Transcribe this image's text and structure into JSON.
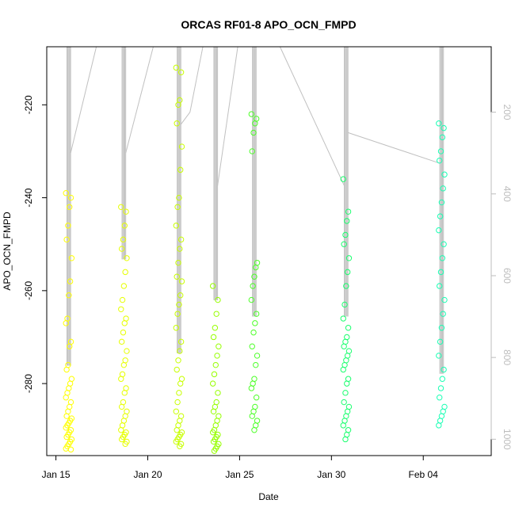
{
  "chart_data": {
    "type": "scatter",
    "title": "ORCAS RF01-8 APO_OCN_FMPD",
    "xlabel": "Date",
    "ylabel": "APO_OCN_FMPD",
    "x_tick_labels": [
      "Jan 15",
      "Jan 20",
      "Jan 25",
      "Jan 30",
      "Feb 04"
    ],
    "x_tick_dates": [
      "2016-01-15",
      "2016-01-20",
      "2016-01-25",
      "2016-01-30",
      "2016-02-04"
    ],
    "xlim": [
      "2016-01-14.5",
      "2016-02-07.7"
    ],
    "ylim": [
      -295.5,
      -207.5
    ],
    "y_ticks": [
      -220,
      -240,
      -260,
      -280
    ],
    "y2_label": "",
    "y2_ticks": [
      200,
      400,
      600,
      800,
      1000
    ],
    "y2_lim": [
      1040,
      40
    ],
    "y2_color": "#bdbdbd",
    "point_style": "open circle",
    "series": [
      {
        "date": "2016-01-15.7",
        "color": "#ffff00",
        "values": [
          -239,
          -240,
          -242,
          -246,
          -249,
          -253,
          -258,
          -261,
          -266,
          -267,
          -271,
          -272,
          -276,
          -277,
          -279,
          -280,
          -281,
          -282,
          -283,
          -284,
          -285,
          -286,
          -287,
          -287.5,
          -288,
          -288.5,
          -289,
          -289.5,
          -290,
          -290.5,
          -291,
          -291.5,
          -292,
          -292.5,
          -293,
          -293.5,
          -294,
          -294.2
        ]
      },
      {
        "date": "2016-01-18.7",
        "color": "#e6ff00",
        "values": [
          -242,
          -243,
          -246,
          -249,
          -251,
          -253,
          -256,
          -259,
          -262,
          -264,
          -266,
          -267,
          -269,
          -271,
          -273,
          -275,
          -276,
          -278,
          -279,
          -281,
          -282,
          -284,
          -285,
          -286,
          -287,
          -288,
          -289,
          -290,
          -290.5,
          -291,
          -291.5,
          -292,
          -292.5,
          -293
        ]
      },
      {
        "date": "2016-01-21.7",
        "color": "#c8ff00",
        "values": [
          -212,
          -213,
          -219,
          -220,
          -224,
          -229,
          -234,
          -240,
          -242,
          -246,
          -249,
          -251,
          -254,
          -257,
          -258,
          -261,
          -263,
          -265,
          -268,
          -271,
          -273,
          -275,
          -277,
          -279,
          -280,
          -282,
          -284,
          -286,
          -287,
          -288,
          -289,
          -290,
          -290.5,
          -291,
          -291.5,
          -292,
          -292.5,
          -293,
          -293.5
        ]
      },
      {
        "date": "2016-01-23.7",
        "color": "#96ff00",
        "values": [
          -259,
          -262,
          -265,
          -268,
          -270,
          -272,
          -274,
          -276,
          -278,
          -280,
          -282,
          -284,
          -285,
          -286,
          -287,
          -288,
          -289,
          -290,
          -290.5,
          -291,
          -291.5,
          -292,
          -292.5,
          -293,
          -293.5,
          -294,
          -294.5
        ]
      },
      {
        "date": "2016-01-25.8",
        "color": "#4dff28",
        "values": [
          -222,
          -223,
          -224,
          -226,
          -230,
          -254,
          -255,
          -257,
          -259,
          -262,
          -265,
          -267,
          -269,
          -272,
          -274,
          -276,
          -279,
          -280,
          -281,
          -283,
          -285,
          -286,
          -287,
          -288,
          -289,
          -290
        ]
      },
      {
        "date": "2016-01-30.8",
        "color": "#1aff6e",
        "values": [
          -236,
          -243,
          -245,
          -248,
          -250,
          -253,
          -256,
          -259,
          -263,
          -266,
          -268,
          -270,
          -271,
          -272,
          -273,
          -274,
          -275,
          -276,
          -277,
          -279,
          -280,
          -282,
          -284,
          -285,
          -286,
          -287,
          -288,
          -289,
          -290,
          -291,
          -292
        ]
      },
      {
        "date": "2016-02-05.0",
        "color": "#1affb4",
        "values": [
          -224,
          -225,
          -227,
          -230,
          -232,
          -235,
          -238,
          -241,
          -244,
          -247,
          -250,
          -253,
          -256,
          -259,
          -262,
          -265,
          -268,
          -271,
          -274,
          -277,
          -279,
          -281,
          -283,
          -285,
          -286,
          -287,
          -288,
          -289
        ]
      }
    ],
    "altitude_traces": {
      "color": "#c0c0c0",
      "flights": [
        {
          "date_start": "2016-01-15.6",
          "date_end": "2016-01-15.8",
          "top": 40,
          "bottom": 820
        },
        {
          "date_start": "2016-01-18.6",
          "date_end": "2016-01-18.8",
          "top": 40,
          "bottom": 560
        },
        {
          "date_start": "2016-01-21.6",
          "date_end": "2016-01-21.8",
          "top": 40,
          "bottom": 790
        },
        {
          "date_start": "2016-01-23.6",
          "date_end": "2016-01-23.8",
          "top": 40,
          "bottom": 660
        },
        {
          "date_start": "2016-01-25.7",
          "date_end": "2016-01-25.9",
          "top": 40,
          "bottom": 700
        },
        {
          "date_start": "2016-01-30.7",
          "date_end": "2016-01-30.9",
          "top": 40,
          "bottom": 700
        },
        {
          "date_start": "2016-02-04.9",
          "date_end": "2016-02-05.1",
          "top": 40,
          "bottom": 840
        }
      ],
      "connectors": [
        [
          "2016-01-15.8",
          300,
          "2016-01-17.2",
          40
        ],
        [
          "2016-01-18.8",
          300,
          "2016-01-20.3",
          40
        ],
        [
          "2016-01-21.8",
          230,
          "2016-01-22.3",
          200
        ],
        [
          "2016-01-22.3",
          200,
          "2016-01-23.0",
          40
        ],
        [
          "2016-01-23.8",
          380,
          "2016-01-24.9",
          40
        ],
        [
          "2016-01-25.9",
          40,
          "2016-01-26.0",
          40
        ],
        [
          "2016-01-27.2",
          40,
          "2016-01-30.7",
          380
        ],
        [
          "2016-01-30.9",
          250,
          "2016-02-04.9",
          325
        ]
      ]
    }
  }
}
